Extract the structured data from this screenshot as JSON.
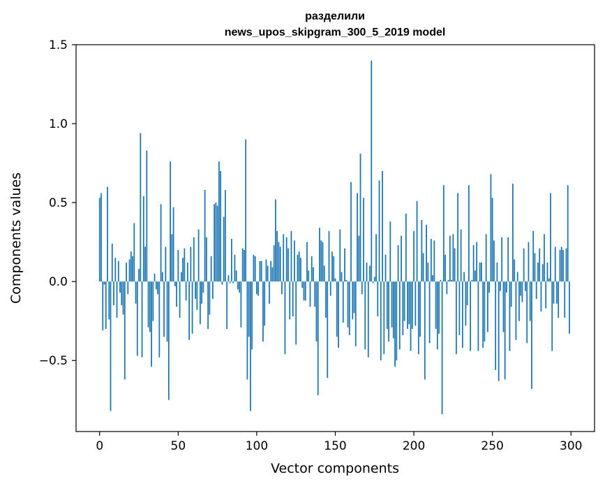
{
  "chart_data": {
    "type": "bar",
    "title": "разделили",
    "subtitle": "news_upos_skipgram_300_5_2019 model",
    "xlabel": "Vector components",
    "ylabel": "Components values",
    "xlim": [
      -15,
      315
    ],
    "ylim": [
      -0.95,
      1.5
    ],
    "xticks": [
      0,
      50,
      100,
      150,
      200,
      250,
      300
    ],
    "yticks": [
      -0.5,
      0.0,
      0.5,
      1.0,
      1.5
    ],
    "xtick_labels": [
      "0",
      "50",
      "100",
      "150",
      "200",
      "250",
      "300"
    ],
    "ytick_labels": [
      "−0.5",
      "0.0",
      "0.5",
      "1.0",
      "1.5"
    ],
    "bar_color": "#1f77b4",
    "grid": false,
    "x_start": 0,
    "values": [
      0.53,
      0.56,
      -0.31,
      -0.02,
      -0.3,
      0.6,
      -0.24,
      -0.82,
      0.24,
      -0.15,
      0.15,
      -0.23,
      0.13,
      -0.07,
      -0.15,
      -0.21,
      -0.62,
      0.12,
      -0.08,
      0.14,
      0.19,
      0.16,
      0.37,
      -0.14,
      -0.47,
      0.08,
      0.94,
      -0.48,
      0.54,
      0.22,
      0.83,
      -0.29,
      -0.32,
      -0.54,
      -0.25,
      0.05,
      -0.05,
      -0.08,
      -0.48,
      0.49,
      0.06,
      -0.35,
      0.22,
      -0.38,
      -0.75,
      0.76,
      0.3,
      0.47,
      -0.03,
      -0.16,
      0.2,
      -0.23,
      0.06,
      0.15,
      0.21,
      -0.12,
      0.12,
      -0.37,
      0.22,
      -0.33,
      0.28,
      -0.11,
      -0.18,
      0.33,
      -0.27,
      -0.14,
      -0.07,
      0.58,
      0.28,
      -0.3,
      -0.21,
      0.16,
      -0.11,
      0.49,
      0.5,
      0.48,
      0.76,
      0.7,
      -0.02,
      0.41,
      0.58,
      -0.3,
      0.04,
      -0.01,
      0.27,
      -0.01,
      0.17,
      0.07,
      -0.05,
      -0.07,
      -0.29,
      0.21,
      0.2,
      0.9,
      -0.62,
      -0.35,
      -0.82,
      -0.43,
      0.17,
      0.16,
      -0.08,
      -0.09,
      0.13,
      0.13,
      -0.38,
      -0.28,
      0.14,
      0.1,
      -0.14,
      0.13,
      0.09,
      0.23,
      0.52,
      0.32,
      0.25,
      0.22,
      -0.08,
      0.3,
      -0.46,
      0.28,
      0.21,
      -0.24,
      0.32,
      -0.22,
      0.26,
      -0.4,
      0.17,
      0.19,
      0.15,
      -0.04,
      -0.12,
      -0.12,
      0.25,
      0.07,
      -0.16,
      0.16,
      0.09,
      -0.16,
      -0.38,
      -0.72,
      0.34,
      0.26,
      0.25,
      0.1,
      -0.23,
      -0.61,
      0.32,
      -0.09,
      0.19,
      0.16,
      0.02,
      -0.35,
      -0.42,
      0.33,
      0.06,
      -0.26,
      0.21,
      0.01,
      -0.29,
      -0.34,
      0.63,
      -0.24,
      -0.2,
      -0.41,
      0.56,
      0.29,
      0.81,
      -0.08,
      0.53,
      -0.43,
      0.12,
      -0.48,
      0.1,
      1.4,
      -0.01,
      0.03,
      0.3,
      -0.22,
      0.64,
      -0.5,
      0.7,
      -0.46,
      0.17,
      -0.3,
      -0.38,
      0.38,
      -0.29,
      -0.36,
      -0.54,
      -0.5,
      0.23,
      -0.43,
      0.29,
      -0.34,
      -0.25,
      0.43,
      -0.3,
      -0.27,
      -0.44,
      -0.3,
      0.32,
      -0.28,
      0.51,
      -0.46,
      -0.35,
      0.39,
      0.18,
      -0.62,
      0.36,
      0.12,
      -0.39,
      0.27,
      0.04,
      0.26,
      -0.3,
      -0.43,
      -0.33,
      0.01,
      -0.84,
      0.61,
      0.17,
      -0.08,
      0.01,
      0.29,
      0.01,
      0.3,
      0.21,
      -0.46,
      0.56,
      -0.34,
      0.33,
      -0.42,
      0.06,
      -0.28,
      -0.15,
      0.61,
      -0.44,
      0.01,
      0.23,
      0.07,
      0.25,
      -0.44,
      0.12,
      0.12,
      -0.42,
      -0.38,
      0.3,
      -0.32,
      -0.07,
      0.68,
      0.53,
      0.26,
      -0.56,
      0.12,
      -0.63,
      -0.06,
      0.28,
      -0.32,
      -0.62,
      -0.07,
      0.28,
      -0.44,
      -0.16,
      0.62,
      0.14,
      -0.37,
      0.06,
      -0.25,
      -0.09,
      -0.13,
      0.21,
      -0.06,
      -0.39,
      0.25,
      -0.25,
      -0.68,
      0.32,
      0.18,
      -0.11,
      0.12,
      0.21,
      -0.19,
      0.11,
      0.3,
      -0.17,
      0.12,
      0.02,
      0.56,
      -0.44,
      -0.14,
      0.22,
      -0.14,
      -0.23,
      0.2,
      0.22,
      0.2,
      -0.23,
      0.21,
      0.61,
      -0.33
    ]
  }
}
